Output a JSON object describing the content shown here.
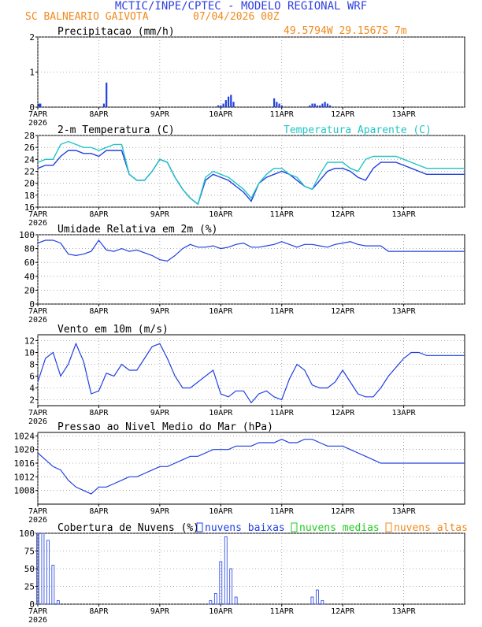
{
  "header": {
    "title": "MCTIC/INPE/CPTEC - MODELO REGIONAL WRF",
    "location": "SC BALNEARIO GAIVOTA",
    "run": "07/04/2026 00Z",
    "coords": "49.5794W 29.1567S 7m"
  },
  "colors": {
    "title": "#2f3fe0",
    "orange": "#f08a1e",
    "cyan": "#22c4c4",
    "blue": "#2040e0",
    "green": "#22cc22",
    "axis": "#000000",
    "grid": "#999999"
  },
  "x_axis": {
    "day_labels": [
      "7APR",
      "8APR",
      "9APR",
      "10APR",
      "11APR",
      "12APR",
      "13APR"
    ],
    "year_label": "2026",
    "range_hours": [
      0,
      168
    ]
  },
  "chart_data": [
    {
      "id": "precip",
      "type": "bar",
      "title": "Precipitacao (mm/h)",
      "ylim": [
        0,
        2
      ],
      "yticks": [
        0,
        1,
        2
      ],
      "x": [
        0.5,
        1,
        26,
        27,
        71,
        72,
        73,
        74,
        75,
        76,
        77,
        93,
        94,
        95,
        96,
        107,
        108,
        109,
        110,
        111,
        112,
        113,
        114,
        115
      ],
      "values": [
        0.1,
        0.1,
        0.1,
        0.7,
        0.05,
        0.05,
        0.1,
        0.2,
        0.3,
        0.35,
        0.15,
        0.25,
        0.15,
        0.1,
        0.05,
        0.05,
        0.1,
        0.1,
        0.05,
        0.05,
        0.1,
        0.15,
        0.1,
        0.05
      ]
    },
    {
      "id": "temp",
      "type": "line",
      "title": "2-m Temperatura (C)",
      "legend": "Temperatura Aparente (C)",
      "ylim": [
        16,
        28
      ],
      "yticks": [
        16,
        18,
        20,
        22,
        24,
        26,
        28
      ],
      "x": [
        0,
        3,
        6,
        9,
        12,
        15,
        18,
        21,
        24,
        27,
        30,
        33,
        36,
        39,
        42,
        45,
        48,
        51,
        54,
        57,
        60,
        63,
        66,
        69,
        72,
        75,
        78,
        81,
        84,
        87,
        90,
        93,
        96,
        99,
        102,
        105,
        108,
        111,
        114,
        117,
        120,
        123,
        126,
        129,
        132,
        135,
        138,
        141,
        144,
        147,
        150,
        153,
        156,
        159,
        162,
        165,
        168
      ],
      "series": [
        {
          "name": "Temperatura",
          "values": [
            22.5,
            23,
            23,
            24.5,
            25.5,
            25.5,
            25,
            25,
            24.5,
            25.5,
            25.5,
            25.5,
            21.5,
            20.5,
            20.5,
            22,
            24,
            23.5,
            21,
            19,
            17.5,
            16.5,
            20.5,
            21.5,
            21,
            20.5,
            19.5,
            18.5,
            17,
            20,
            21,
            21.5,
            22,
            21.5,
            20.5,
            19.5,
            19,
            20.5,
            22,
            22.5,
            22.5,
            22,
            21,
            20.5,
            22.5,
            23.5,
            23.5,
            23.5,
            23,
            22.5,
            22,
            21.5,
            21.5,
            21.5,
            21.5,
            21.5,
            21.5
          ]
        },
        {
          "name": "Temperatura Aparente",
          "values": [
            23.5,
            24,
            24,
            26.5,
            27,
            26.5,
            26,
            26,
            25.5,
            26,
            26.5,
            26.5,
            21.5,
            20.5,
            20.5,
            22,
            24,
            23.5,
            21,
            19,
            17.5,
            16.5,
            21,
            22,
            21.5,
            21,
            20,
            19,
            17.5,
            20,
            21.5,
            22.5,
            22.5,
            21.5,
            21,
            19.5,
            19,
            21.5,
            23.5,
            23.5,
            23.5,
            22.5,
            22,
            24,
            24.5,
            24.5,
            24.5,
            24.5,
            24,
            23.5,
            23,
            22.5,
            22.5,
            22.5,
            22.5,
            22.5,
            22.5
          ]
        }
      ]
    },
    {
      "id": "rh",
      "type": "line",
      "title": "Umidade Relativa em 2m (%)",
      "ylim": [
        0,
        100
      ],
      "yticks": [
        0,
        20,
        40,
        60,
        80,
        100
      ],
      "x": [
        0,
        3,
        6,
        9,
        12,
        15,
        18,
        21,
        24,
        27,
        30,
        33,
        36,
        39,
        42,
        45,
        48,
        51,
        54,
        57,
        60,
        63,
        66,
        69,
        72,
        75,
        78,
        81,
        84,
        87,
        90,
        93,
        96,
        99,
        102,
        105,
        108,
        111,
        114,
        117,
        120,
        123,
        126,
        129,
        132,
        135,
        138,
        141,
        144,
        147,
        150,
        153,
        156,
        159,
        162,
        165,
        168
      ],
      "values": [
        88,
        92,
        92,
        88,
        72,
        70,
        72,
        76,
        92,
        78,
        76,
        80,
        76,
        78,
        74,
        70,
        64,
        62,
        70,
        80,
        86,
        82,
        82,
        84,
        80,
        82,
        86,
        88,
        82,
        82,
        84,
        86,
        90,
        86,
        82,
        86,
        86,
        84,
        82,
        86,
        88,
        90,
        86,
        84,
        84,
        84,
        76,
        76,
        76,
        76,
        76,
        76,
        76,
        76,
        76,
        76,
        76
      ]
    },
    {
      "id": "wind",
      "type": "line",
      "title": "Vento em 10m (m/s)",
      "ylim": [
        1,
        13
      ],
      "yticks": [
        2,
        4,
        6,
        8,
        10,
        12
      ],
      "x": [
        0,
        3,
        6,
        9,
        12,
        15,
        18,
        21,
        24,
        27,
        30,
        33,
        36,
        39,
        42,
        45,
        48,
        51,
        54,
        57,
        60,
        63,
        66,
        69,
        72,
        75,
        78,
        81,
        84,
        87,
        90,
        93,
        96,
        99,
        102,
        105,
        108,
        111,
        114,
        117,
        120,
        123,
        126,
        129,
        132,
        135,
        138,
        141,
        144,
        147,
        150,
        153,
        156,
        159,
        162,
        165,
        168
      ],
      "values": [
        5,
        9,
        10,
        6,
        8,
        11.5,
        8.5,
        3,
        3.5,
        6.5,
        6,
        8,
        7,
        7,
        9,
        11,
        11.5,
        9,
        6,
        4,
        4,
        5,
        6,
        7,
        3,
        2.5,
        3.5,
        3.5,
        1.5,
        3,
        3.5,
        2.5,
        2,
        5.5,
        8,
        7,
        4.5,
        4,
        4,
        5,
        7,
        5,
        3,
        2.5,
        2.5,
        4,
        6,
        7.5,
        9,
        10,
        10,
        9.5,
        9.5,
        9.5,
        9.5,
        9.5,
        9.5
      ]
    },
    {
      "id": "pressure",
      "type": "line",
      "title": "Pressao ao Nivel Medio do Mar (hPa)",
      "ylim": [
        1004,
        1025
      ],
      "yticks": [
        1008,
        1012,
        1016,
        1020,
        1024
      ],
      "x": [
        0,
        3,
        6,
        9,
        12,
        15,
        18,
        21,
        24,
        27,
        30,
        33,
        36,
        39,
        42,
        45,
        48,
        51,
        54,
        57,
        60,
        63,
        66,
        69,
        72,
        75,
        78,
        81,
        84,
        87,
        90,
        93,
        96,
        99,
        102,
        105,
        108,
        111,
        114,
        117,
        120,
        123,
        126,
        129,
        132,
        135,
        138,
        141,
        144,
        147,
        150,
        153,
        156,
        159,
        162,
        165,
        168
      ],
      "values": [
        1019,
        1017,
        1015,
        1014,
        1011,
        1009,
        1008,
        1007,
        1009,
        1009,
        1010,
        1011,
        1012,
        1012,
        1013,
        1014,
        1015,
        1015,
        1016,
        1017,
        1018,
        1018,
        1019,
        1020,
        1020,
        1020,
        1021,
        1021,
        1021,
        1022,
        1022,
        1022,
        1023,
        1022,
        1022,
        1023,
        1023,
        1022,
        1021,
        1021,
        1021,
        1020,
        1019,
        1018,
        1017,
        1016,
        1016,
        1016,
        1016,
        1016,
        1016,
        1016,
        1016,
        1016,
        1016,
        1016,
        1016
      ]
    },
    {
      "id": "clouds",
      "type": "bar",
      "title": "Cobertura de Nuvens (%)",
      "legend": [
        "nuvens baixas",
        "nuvens medias",
        "nuvens altas"
      ],
      "ylim": [
        0,
        100
      ],
      "yticks": [
        0,
        25,
        50,
        75,
        100
      ],
      "x": [
        0,
        2,
        4,
        6,
        8,
        10,
        12,
        14,
        16,
        18,
        20,
        22,
        24,
        26,
        28,
        30,
        32,
        34,
        36,
        38,
        40,
        42,
        44,
        46,
        48,
        50,
        52,
        54,
        56,
        58,
        60,
        62,
        64,
        66,
        68,
        70,
        72,
        74,
        76,
        78,
        80,
        82,
        84,
        86,
        88,
        90,
        92,
        94,
        96,
        98,
        100,
        102,
        104,
        106,
        108,
        110,
        112,
        114,
        116,
        118,
        120,
        122,
        124,
        126,
        128,
        130,
        132,
        134,
        136,
        138,
        140,
        142,
        144,
        146,
        148,
        150,
        152,
        154,
        156,
        158,
        160,
        162,
        164,
        166
      ],
      "series": [
        {
          "name": "nuvens baixas",
          "values": [
            100,
            100,
            90,
            55,
            5,
            0,
            0,
            0,
            0,
            0,
            0,
            0,
            0,
            0,
            0,
            0,
            0,
            0,
            0,
            0,
            0,
            0,
            0,
            0,
            0,
            0,
            0,
            0,
            0,
            0,
            0,
            0,
            0,
            0,
            5,
            15,
            60,
            95,
            50,
            10,
            0,
            0,
            0,
            0,
            0,
            0,
            0,
            0,
            0,
            0,
            0,
            0,
            0,
            0,
            10,
            20,
            5,
            0,
            0,
            0,
            0,
            0,
            0,
            0,
            0,
            0,
            0,
            0,
            0,
            0,
            0,
            0,
            0,
            0,
            0,
            0,
            0,
            0,
            0,
            0,
            0,
            0,
            0,
            0
          ]
        },
        {
          "name": "nuvens medias",
          "values": [
            0,
            0,
            0,
            0,
            0,
            0,
            0,
            0,
            0,
            0,
            0,
            0,
            0,
            0,
            0,
            0,
            0,
            0,
            0,
            0,
            0,
            0,
            0,
            0,
            0,
            0,
            0,
            0,
            0,
            0,
            0,
            0,
            0,
            0,
            0,
            0,
            0,
            0,
            0,
            0,
            0,
            0,
            0,
            0,
            0,
            0,
            0,
            0,
            0,
            0,
            0,
            0,
            0,
            0,
            0,
            0,
            0,
            0,
            0,
            0,
            0,
            0,
            0,
            0,
            0,
            0,
            0,
            0,
            0,
            0,
            0,
            0,
            0,
            0,
            0,
            0,
            0,
            0,
            0,
            0,
            0,
            0,
            0,
            0
          ]
        },
        {
          "name": "nuvens altas",
          "values": [
            0,
            0,
            0,
            0,
            0,
            0,
            0,
            0,
            0,
            0,
            0,
            0,
            0,
            0,
            0,
            0,
            0,
            0,
            0,
            0,
            0,
            0,
            0,
            0,
            0,
            0,
            0,
            0,
            0,
            0,
            0,
            0,
            0,
            0,
            0,
            0,
            0,
            0,
            0,
            0,
            0,
            0,
            0,
            0,
            0,
            0,
            0,
            0,
            0,
            0,
            0,
            0,
            0,
            0,
            0,
            0,
            0,
            0,
            0,
            0,
            0,
            0,
            0,
            0,
            0,
            0,
            0,
            0,
            0,
            0,
            0,
            0,
            0,
            0,
            0,
            0,
            0,
            0,
            0,
            0,
            0,
            0,
            0,
            0
          ]
        }
      ]
    }
  ]
}
